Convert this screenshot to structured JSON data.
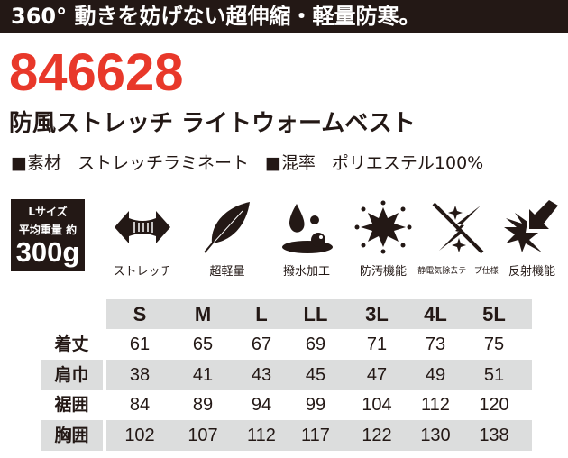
{
  "banner": "360° 動きを妨げない超伸縮・軽量防寒。",
  "product_code": "846628",
  "product_name": "防風ストレッチ ライトウォームベスト",
  "material_label": "■素材",
  "material": "ストレッチラミネート",
  "blend_label": "■混率",
  "blend": "ポリエステル100%",
  "weight": {
    "size": "Lサイズ",
    "label": "平均重量 約",
    "value": "300g"
  },
  "features": [
    {
      "icon": "stretch-arrows-icon",
      "label": "ストレッチ"
    },
    {
      "icon": "feather-icon",
      "label": "超軽量"
    },
    {
      "icon": "water-drop-icon",
      "label": "撥水加工"
    },
    {
      "icon": "stain-resist-icon",
      "label": "防汚機能"
    },
    {
      "icon": "antistatic-icon",
      "label": "静電気除去テープ仕様"
    },
    {
      "icon": "reflect-icon",
      "label": "反射機能"
    }
  ],
  "size_table": {
    "sizes": [
      "S",
      "M",
      "L",
      "LL",
      "3L",
      "4L",
      "5L"
    ],
    "rows": [
      {
        "label": "着丈",
        "values": [
          "61",
          "65",
          "67",
          "69",
          "71",
          "73",
          "75"
        ]
      },
      {
        "label": "肩巾",
        "values": [
          "38",
          "41",
          "43",
          "45",
          "47",
          "49",
          "51"
        ]
      },
      {
        "label": "裾囲",
        "values": [
          "84",
          "89",
          "94",
          "99",
          "104",
          "112",
          "120"
        ]
      },
      {
        "label": "胸囲",
        "values": [
          "102",
          "107",
          "112",
          "117",
          "122",
          "130",
          "138"
        ]
      }
    ]
  },
  "colors": {
    "dark": "#231815",
    "accent": "#e8382a",
    "row_gray": "#dcdddd"
  }
}
